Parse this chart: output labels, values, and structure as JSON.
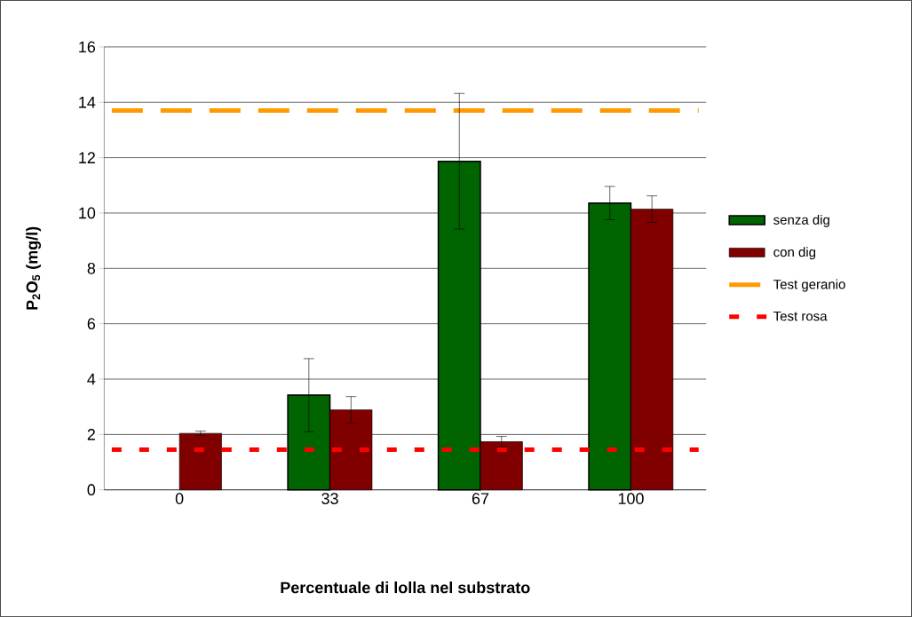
{
  "chart_data": {
    "type": "bar",
    "xlabel": "Percentuale di lolla nel substrato",
    "ylabel": "P$_{2}$O$_{5}$ (mg/l)",
    "categories": [
      "0",
      "33",
      "67",
      "100"
    ],
    "series": [
      {
        "name": "senza dig",
        "color": "#006400",
        "values": [
          null,
          3.42,
          11.87,
          10.36
        ],
        "errors": [
          null,
          1.32,
          2.45,
          0.6
        ]
      },
      {
        "name": "con dig",
        "color": "#800000",
        "values": [
          2.04,
          2.89,
          1.74,
          10.14
        ],
        "errors": [
          0.08,
          0.48,
          0.19,
          0.48
        ]
      }
    ],
    "ref_lines": [
      {
        "axis": "y",
        "value": 13.7,
        "label": "Test geranio",
        "color": "#ff9900",
        "line_style": "dashed"
      },
      {
        "axis": "y",
        "value": 1.45,
        "label": "Test rosa",
        "color": "#ff0000",
        "line_style": "dotted"
      }
    ],
    "ylim": [
      0,
      16
    ],
    "yticks": [
      0,
      2,
      4,
      6,
      8,
      10,
      12,
      14,
      16
    ],
    "grid": "y",
    "legend": "right"
  }
}
